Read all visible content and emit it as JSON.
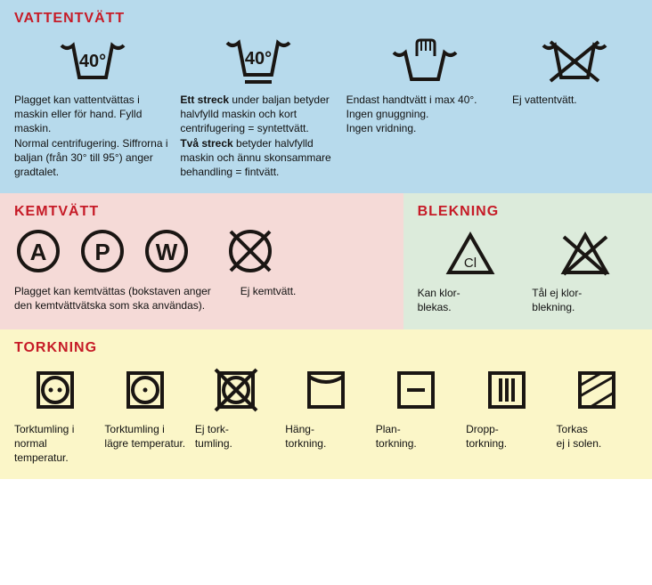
{
  "colors": {
    "heading": "#c61b27",
    "wash_bg": "#b7daec",
    "dry_bg": "#f5dad7",
    "bleach_bg": "#dcebdb",
    "tumble_bg": "#fbf6c8",
    "stroke": "#1a1613"
  },
  "wash": {
    "title": "VATTENTVÄTT",
    "items": [
      {
        "desc": "Plagget kan vattentvättas i maskin eller för hand. Fylld maskin.\nNormal centrifugering. Siffrorna i baljan (från 30° till 95°) anger gradtalet."
      },
      {
        "desc_html": "<b>Ett streck</b> under baljan betyder halvfylld maskin och kort centrifugering = syntettvätt.\n<b>Två streck</b> betyder halvfylld maskin och ännu skonsammare behandling = fintvätt."
      },
      {
        "desc": "Endast handtvätt i max 40°.\nIngen gnuggning.\nIngen vridning."
      },
      {
        "desc": "Ej vattentvätt."
      }
    ],
    "temp": "40°"
  },
  "dry": {
    "title": "KEMTVÄTT",
    "letters": [
      "A",
      "P",
      "W"
    ],
    "desc1": "Plagget kan kemtvättas (bokstaven anger den kemtvättvätska som ska användas).",
    "desc2": "Ej kemtvätt."
  },
  "bleach": {
    "title": "BLEKNING",
    "items": [
      {
        "label": "Cl",
        "desc": "Kan klor-\nblekas."
      },
      {
        "desc": "Tål ej klor-\nblekning."
      }
    ]
  },
  "tumble": {
    "title": "TORKNING",
    "items": [
      {
        "desc": "Torktumling i normal temperatur."
      },
      {
        "desc": "Torktumling i lägre temperatur."
      },
      {
        "desc": "Ej tork-\ntumling."
      },
      {
        "desc": "Häng-\ntorkning."
      },
      {
        "desc": "Plan-\ntorkning."
      },
      {
        "desc": "Dropp-\ntorkning."
      },
      {
        "desc": "Torkas\nej i solen."
      }
    ]
  }
}
